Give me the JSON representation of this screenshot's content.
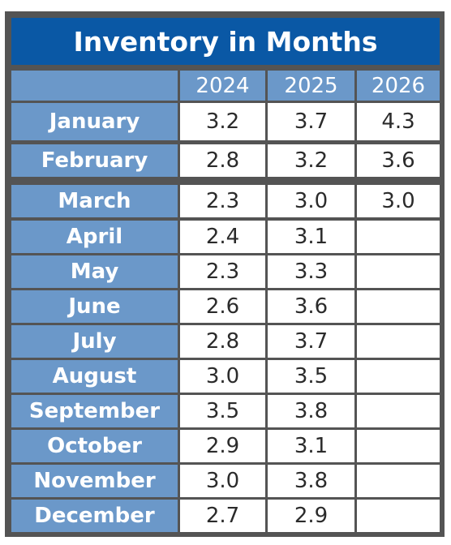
{
  "chart_data": {
    "type": "table",
    "title": "Inventory in Months",
    "columns": [
      "2024",
      "2025",
      "2026"
    ],
    "rows": [
      {
        "month": "January",
        "values": [
          "3.2",
          "3.7",
          "4.3"
        ]
      },
      {
        "month": "February",
        "values": [
          "2.8",
          "3.2",
          "3.6"
        ]
      },
      {
        "month": "March",
        "values": [
          "2.3",
          "3.0",
          "3.0"
        ]
      },
      {
        "month": "April",
        "values": [
          "2.4",
          "3.1",
          ""
        ]
      },
      {
        "month": "May",
        "values": [
          "2.3",
          "3.3",
          ""
        ]
      },
      {
        "month": "June",
        "values": [
          "2.6",
          "3.6",
          ""
        ]
      },
      {
        "month": "July",
        "values": [
          "2.8",
          "3.7",
          ""
        ]
      },
      {
        "month": "August",
        "values": [
          "3.0",
          "3.5",
          ""
        ]
      },
      {
        "month": "September",
        "values": [
          "3.5",
          "3.8",
          ""
        ]
      },
      {
        "month": "October",
        "values": [
          "2.9",
          "3.1",
          ""
        ]
      },
      {
        "month": "November",
        "values": [
          "3.0",
          "3.8",
          ""
        ]
      },
      {
        "month": "December",
        "values": [
          "2.7",
          "2.9",
          ""
        ]
      }
    ]
  },
  "colors": {
    "title_bg": "#0a58a5",
    "header_bg": "#6b98c9",
    "border": "#545454",
    "cell_bg": "#ffffff"
  }
}
